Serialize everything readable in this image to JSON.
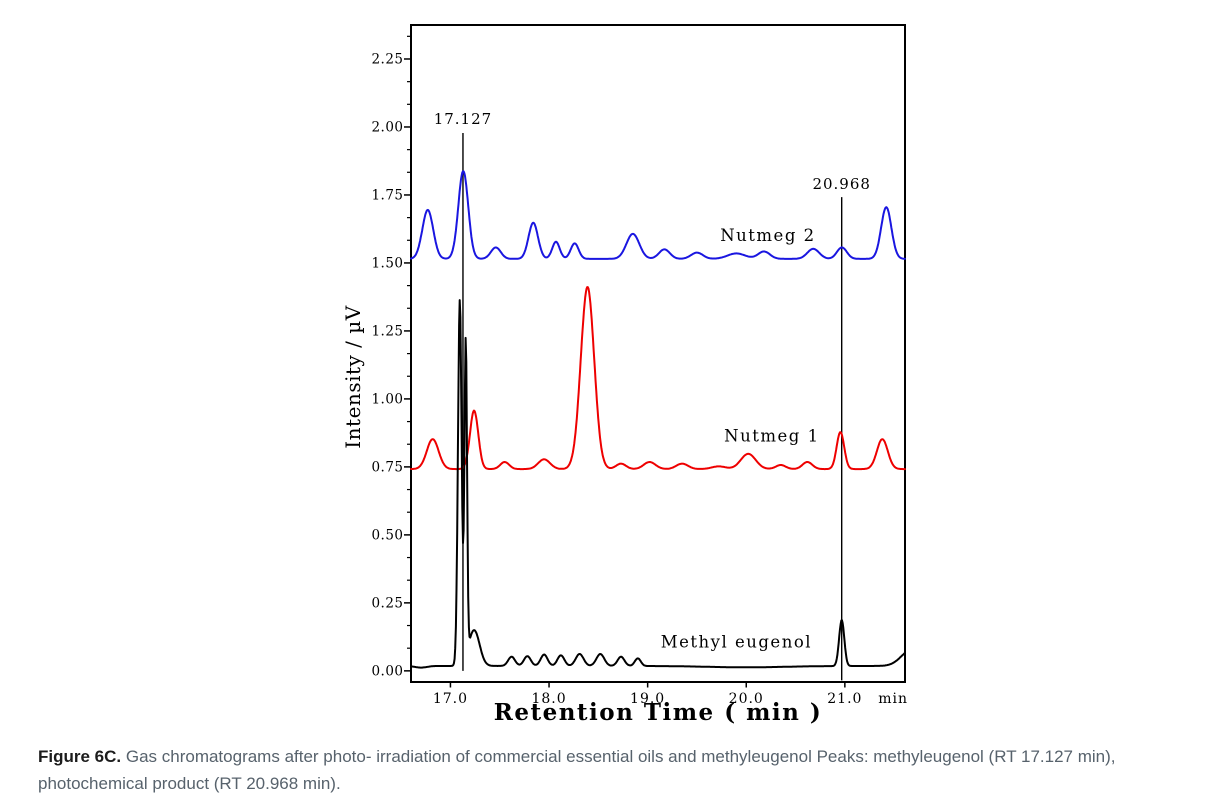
{
  "axes": {
    "y_title": "Intensity / µV",
    "x_title": "Retention Time ( min )"
  },
  "caption": {
    "label": "Figure 6C.",
    "line1": " Gas chromatograms after photo- irradiation of commercial essential oils and methyleugenol Peaks: methyleugenol (RT 17.127 min),",
    "line2": "photochemical product (RT 20.968 min)."
  },
  "chart_data": {
    "type": "line",
    "title": "",
    "xlabel": "Retention Time ( min )",
    "ylabel": "Intensity / µV",
    "xlim": [
      16.6,
      21.61
    ],
    "ylim": [
      -0.041,
      2.375
    ],
    "x_tick_values": [
      17.0,
      18.0,
      19.0,
      20.0,
      21.0
    ],
    "x_tick_labels": [
      "17.0",
      "18.0",
      "19.0",
      "20.0",
      "21.0"
    ],
    "x_unit_label": "min",
    "x_unit_label_t": 21.49,
    "y_tick_values": [
      0.0,
      0.25,
      0.5,
      0.75,
      1.0,
      1.25,
      1.5,
      1.75,
      2.0,
      2.25
    ],
    "y_tick_labels": [
      "0.00",
      "0.25",
      "0.50",
      "0.75",
      "1.00",
      "1.25",
      "1.50",
      "1.75",
      "2.00",
      "2.25"
    ],
    "y_minor_divisions": 3,
    "grid": false,
    "legend": "inline-labels",
    "markers": [
      {
        "label": "17.127",
        "t": 17.127,
        "label_v": 2.03,
        "line_top_v": 1.978,
        "line_bottom_v": 0.0
      },
      {
        "label": "20.968",
        "t": 20.968,
        "label_v": 1.79,
        "line_top_v": 1.742,
        "line_bottom_v": -0.035
      }
    ],
    "series": [
      {
        "name": "Nutmeg 2",
        "color": "#1a16e0",
        "baseline_uV": 1.515,
        "label_pos": [
          20.22,
          1.6
        ],
        "peaks_t_apex_sigma": [
          [
            16.77,
            1.695,
            0.055
          ],
          [
            17.13,
            1.838,
            0.05
          ],
          [
            17.46,
            1.557,
            0.05
          ],
          [
            17.84,
            1.648,
            0.048
          ],
          [
            18.07,
            1.578,
            0.038
          ],
          [
            18.26,
            1.572,
            0.04
          ],
          [
            18.85,
            1.607,
            0.065
          ],
          [
            19.17,
            1.55,
            0.055
          ],
          [
            19.5,
            1.538,
            0.06
          ],
          [
            19.9,
            1.535,
            0.09
          ],
          [
            20.18,
            1.542,
            0.06
          ],
          [
            20.68,
            1.552,
            0.06
          ],
          [
            20.97,
            1.557,
            0.05
          ],
          [
            21.42,
            1.705,
            0.052
          ]
        ]
      },
      {
        "name": "Nutmeg 1",
        "color": "#ee0000",
        "baseline_uV": 0.742,
        "label_pos": [
          20.26,
          0.862
        ],
        "peaks_t_apex_sigma": [
          [
            16.82,
            0.852,
            0.06
          ],
          [
            17.24,
            0.957,
            0.042
          ],
          [
            17.55,
            0.768,
            0.045
          ],
          [
            17.95,
            0.778,
            0.06
          ],
          [
            18.39,
            1.412,
            0.068
          ],
          [
            18.73,
            0.762,
            0.05
          ],
          [
            19.02,
            0.768,
            0.06
          ],
          [
            19.35,
            0.762,
            0.06
          ],
          [
            19.72,
            0.752,
            0.07
          ],
          [
            20.02,
            0.798,
            0.075
          ],
          [
            20.35,
            0.757,
            0.05
          ],
          [
            20.62,
            0.768,
            0.05
          ],
          [
            20.955,
            0.878,
            0.038
          ],
          [
            21.38,
            0.852,
            0.055
          ]
        ]
      },
      {
        "name": "Methyl eugenol",
        "color": "#000000",
        "baseline_uV": 0.018,
        "label_pos": [
          19.9,
          0.105
        ],
        "peaks_t_apex_sigma": [
          [
            16.7,
            0.012,
            0.06
          ],
          [
            17.095,
            1.36,
            0.019
          ],
          [
            17.155,
            1.18,
            0.013
          ],
          [
            17.24,
            0.15,
            0.055
          ],
          [
            17.62,
            0.052,
            0.035
          ],
          [
            17.78,
            0.054,
            0.035
          ],
          [
            17.95,
            0.06,
            0.035
          ],
          [
            18.12,
            0.057,
            0.035
          ],
          [
            18.31,
            0.062,
            0.04
          ],
          [
            18.52,
            0.062,
            0.04
          ],
          [
            18.73,
            0.052,
            0.035
          ],
          [
            18.9,
            0.046,
            0.03
          ],
          [
            20.0,
            0.013,
            0.4
          ],
          [
            20.968,
            0.187,
            0.026
          ],
          [
            21.67,
            0.075,
            0.1
          ]
        ]
      }
    ]
  }
}
